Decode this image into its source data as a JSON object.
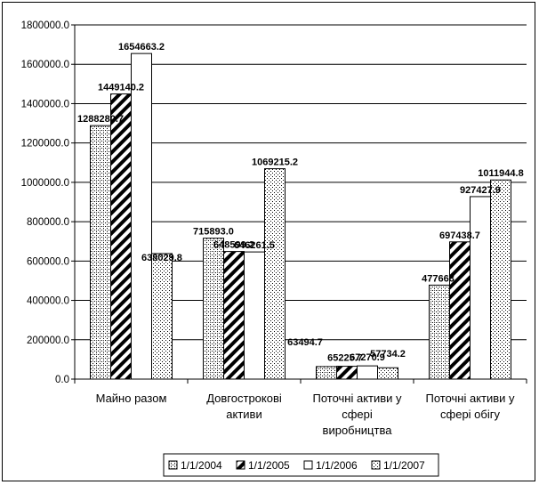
{
  "chart_data": {
    "type": "bar",
    "categories": [
      [
        "Майно разом"
      ],
      [
        "Довгострокові",
        "активи"
      ],
      [
        "Поточні активи у",
        "сфері",
        "виробництва"
      ],
      [
        "Поточні активи у",
        "сфері обігу"
      ]
    ],
    "series": [
      {
        "name": "1/1/2004",
        "pattern": "dots-grid",
        "values": [
          1288280.7,
          715893.0,
          63494.7,
          477663.0
        ]
      },
      {
        "name": "1/1/2005",
        "pattern": "diagonal",
        "values": [
          1449140.2,
          648599.2,
          65225.7,
          697438.7
        ]
      },
      {
        "name": "1/1/2006",
        "pattern": "white",
        "values": [
          1654663.2,
          646261.5,
          67270.9,
          927427.9
        ]
      },
      {
        "name": "1/1/2007",
        "pattern": "fine-dots",
        "values": [
          638029.8,
          1069215.2,
          57734.2,
          1011944.8
        ]
      }
    ],
    "data_labels": [
      [
        "1288280.7",
        "1449140.2",
        "1654663.2",
        "638029.8"
      ],
      [
        "715893.0",
        "648599.2",
        "646261.5",
        "1069215.2"
      ],
      [
        "63494.7",
        "65225.7",
        "67270.9",
        "57734.2"
      ],
      [
        "477663.",
        "697438.7",
        "927427.9",
        "1011944.8"
      ]
    ],
    "y_ticks": [
      "0.0",
      "200000.0",
      "400000.0",
      "600000.0",
      "800000.0",
      "1000000.0",
      "1200000.0",
      "1400000.0",
      "1600000.0",
      "1800000.0"
    ],
    "ylim": [
      0,
      1800000
    ],
    "grid": true,
    "legend_position": "bottom"
  }
}
